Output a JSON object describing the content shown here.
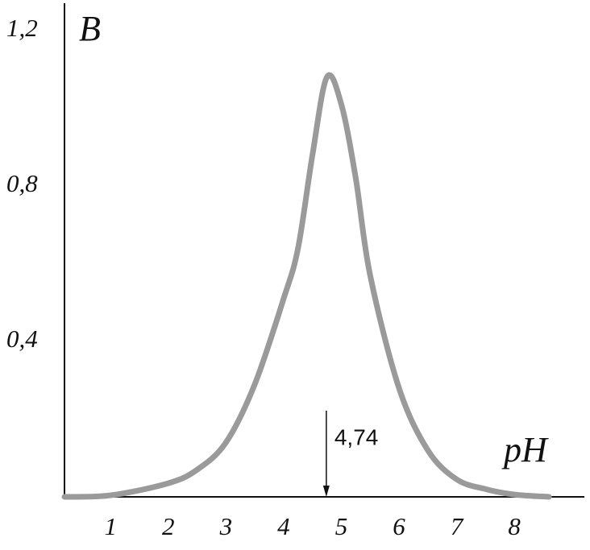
{
  "chart_data": {
    "type": "line",
    "ylabel": "B",
    "xlabel": "pH",
    "x": [
      0.2,
      1,
      2,
      2.5,
      3,
      3.5,
      4,
      4.25,
      4.5,
      4.75,
      5,
      5.25,
      5.5,
      6,
      6.5,
      7,
      7.5,
      8,
      8.6
    ],
    "series": [
      {
        "color": "#9a9a9a",
        "values": [
          0,
          0.004,
          0.035,
          0.07,
          0.14,
          0.29,
          0.51,
          0.64,
          0.88,
          1.08,
          1.01,
          0.82,
          0.57,
          0.28,
          0.12,
          0.045,
          0.02,
          0.006,
          0
        ]
      }
    ],
    "xlim": [
      0.2,
      9.2
    ],
    "xticks": [
      1,
      2,
      3,
      4,
      5,
      6,
      7,
      8
    ],
    "ylim": [
      0,
      1.27
    ],
    "yticks": [
      {
        "value": 0.4,
        "label": "0,4"
      },
      {
        "value": 0.8,
        "label": "0,8"
      },
      {
        "value": 1.2,
        "label": "1,2"
      }
    ],
    "annotations": [
      {
        "value": 4.74,
        "label": "4,74"
      }
    ]
  }
}
